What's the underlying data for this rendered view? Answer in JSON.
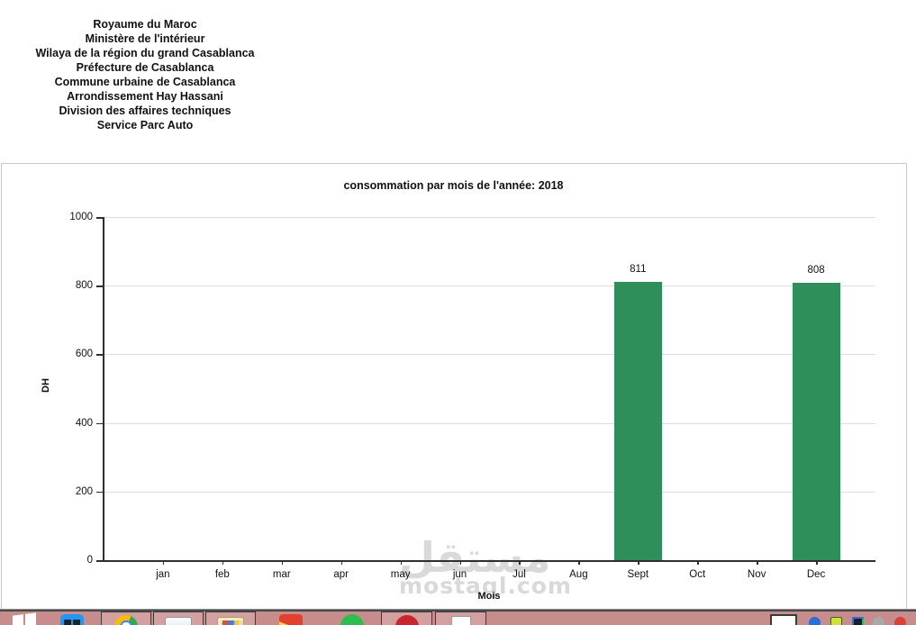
{
  "header": {
    "lines": [
      "Royaume du Maroc",
      "Ministère de l'intérieur",
      "Wilaya de la région du grand Casablanca",
      "Préfecture de Casablanca",
      "Commune urbaine de Casablanca",
      "Arrondissement Hay Hassani",
      "Division des affaires techniques",
      "Service Parc Auto"
    ]
  },
  "chart_data": {
    "type": "bar",
    "title": "consommation par mois de l'année: 2018",
    "xlabel": "Mois",
    "ylabel": "DH",
    "categories": [
      "jan",
      "feb",
      "mar",
      "apr",
      "may",
      "jun",
      "Jul",
      "Aug",
      "Sept",
      "Oct",
      "Nov",
      "Dec"
    ],
    "values": [
      0,
      0,
      0,
      0,
      0,
      0,
      0,
      0,
      811,
      0,
      0,
      808
    ],
    "ylim": [
      0,
      1000
    ],
    "yticks": [
      0,
      200,
      400,
      600,
      800,
      1000
    ],
    "grid": true,
    "legend": "none",
    "bar_color": "#2e8f5a"
  },
  "watermark": {
    "arabic_text": "مستقل",
    "latin_text": "mostaql.com"
  },
  "taskbar": {
    "pinned": [
      {
        "name": "start-button",
        "icon": "windows-logo-icon"
      },
      {
        "name": "taskbar-item-tv-app",
        "icon": "tv-app-icon"
      },
      {
        "name": "taskbar-item-chrome",
        "icon": "chrome-icon"
      },
      {
        "name": "taskbar-item-file-explorer",
        "icon": "file-explorer-icon"
      },
      {
        "name": "taskbar-item-folder",
        "icon": "folder-icon"
      },
      {
        "name": "taskbar-item-colorful-app",
        "icon": "colorful-app-icon"
      },
      {
        "name": "taskbar-item-whatsapp",
        "icon": "whatsapp-icon"
      },
      {
        "name": "taskbar-item-red-app",
        "icon": "red-app-icon"
      },
      {
        "name": "taskbar-item-document-app",
        "icon": "document-app-icon"
      }
    ],
    "tray": [
      {
        "name": "tray-white-window"
      },
      {
        "name": "tray-icon-blue"
      },
      {
        "name": "tray-icon-yellow"
      },
      {
        "name": "tray-icon-dark"
      },
      {
        "name": "tray-icon-gray"
      },
      {
        "name": "tray-icon-red"
      }
    ]
  },
  "colors": {
    "bar_green": "#2e8f5a",
    "taskbar_pink": "#c78d8d",
    "grid_line": "#dedede",
    "axis_line": "#2f2f2f",
    "watermark_gray": "#d9d9d9"
  }
}
